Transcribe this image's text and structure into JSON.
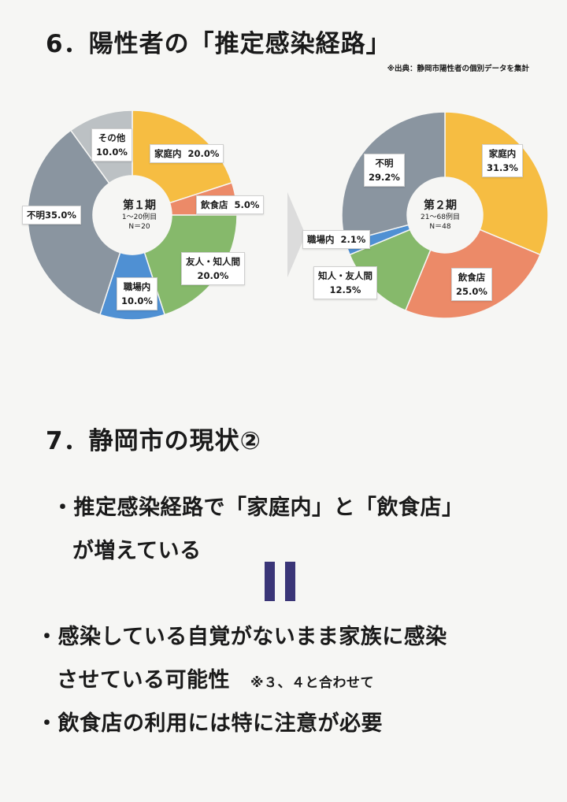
{
  "section6": {
    "title": "6．陽性者の「推定感染経路」",
    "source": "※出典：静岡市陽性者の個別データを集計"
  },
  "chart_data": [
    {
      "type": "pie",
      "title": "第１期",
      "subtitle": "1～20例目",
      "n_label": "N＝20",
      "slices": [
        {
          "label": "家庭内",
          "value": 20.0,
          "value_label": "20.0%",
          "color": "#f6bd42"
        },
        {
          "label": "飲食店",
          "value": 5.0,
          "value_label": "5.0%",
          "color": "#ec8a68"
        },
        {
          "label": "友人・知人間",
          "value": 20.0,
          "value_label": "20.0%",
          "color": "#86b96b"
        },
        {
          "label": "職場内",
          "value": 10.0,
          "value_label": "10.0%",
          "color": "#4f90d3"
        },
        {
          "label": "不明",
          "value": 35.0,
          "value_label": "35.0%",
          "color": "#8a95a0"
        },
        {
          "label": "その他",
          "value": 10.0,
          "value_label": "10.0%",
          "color": "#bcc1c4"
        }
      ]
    },
    {
      "type": "pie",
      "title": "第２期",
      "subtitle": "21～68例目",
      "n_label": "N＝48",
      "slices": [
        {
          "label": "家庭内",
          "value": 31.3,
          "value_label": "31.3%",
          "color": "#f6bd42"
        },
        {
          "label": "飲食店",
          "value": 25.0,
          "value_label": "25.0%",
          "color": "#ec8a68"
        },
        {
          "label": "知人・友人間",
          "value": 12.5,
          "value_label": "12.5%",
          "color": "#86b96b"
        },
        {
          "label": "職場内",
          "value": 2.1,
          "value_label": "2.1%",
          "color": "#4f90d3"
        },
        {
          "label": "不明",
          "value": 29.2,
          "value_label": "29.2%",
          "color": "#8a95a0"
        }
      ]
    }
  ],
  "section7": {
    "title": "7．静岡市の現状②",
    "bullet1_line1": "・推定感染経路で「家庭内」と「飲食店」",
    "bullet1_line2": "が増えている",
    "bullet2_line1": "・感染している自覚がないまま家族に感染",
    "bullet2_line2": "させている可能性",
    "bullet2_note": "※３、４と合わせて",
    "bullet3": "・飲食店の利用には特に注意が必要"
  },
  "colors": {
    "equals_mark": "#3a3577",
    "arrow": "#dcdcdc"
  }
}
